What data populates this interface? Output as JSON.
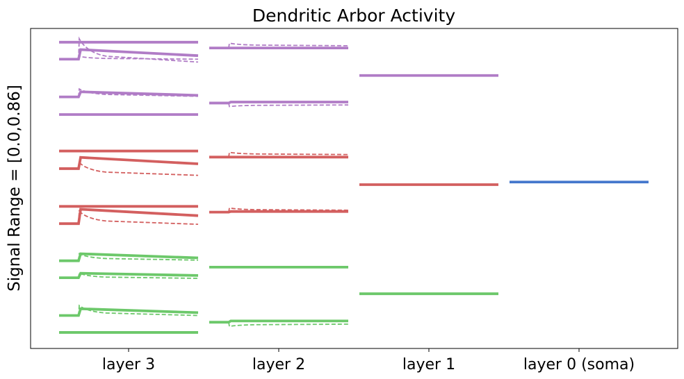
{
  "chart_data": {
    "type": "line",
    "title": "Dendritic Arbor Activity",
    "ylabel": "Signal Range = [0.0,0.86]",
    "xlabel": "",
    "categories": [
      "layer 3",
      "layer 2",
      "layer 1",
      "layer 0 (soma)"
    ],
    "yticks": "none",
    "grid": false,
    "legend": "none",
    "colors": {
      "purple": "#b07cc6",
      "red": "#d35f5f",
      "green": "#6cc86a",
      "blue": "#4477cc",
      "axis": "#000000"
    },
    "ylim": [
      0,
      100
    ],
    "traces": [
      {
        "group": "layer 3",
        "color": "purple",
        "style": "solid",
        "pre": 95.7,
        "post": 95.7,
        "tail": 95.7
      },
      {
        "group": "layer 3",
        "color": "purple",
        "style": "solid",
        "pre": 90.4,
        "post": 93.4,
        "tail": 91.5
      },
      {
        "group": "layer 3",
        "color": "purple",
        "style": "dashed",
        "pre": 90.4,
        "post": 96.8,
        "tail": 89.5,
        "overshoot": 96.8
      },
      {
        "group": "layer 3",
        "color": "purple",
        "style": "dashed",
        "pre": 90.4,
        "post": 91.3,
        "tail": 90.4
      },
      {
        "group": "layer 3",
        "color": "purple",
        "style": "solid",
        "pre": 78.6,
        "post": 80.2,
        "tail": 79.1
      },
      {
        "group": "layer 3",
        "color": "purple",
        "style": "dashed",
        "pre": 78.6,
        "post": 81.1,
        "tail": 78.8
      },
      {
        "group": "layer 3",
        "color": "purple",
        "style": "solid",
        "pre": 73.1,
        "post": 73.1,
        "tail": 73.1
      },
      {
        "group": "layer 3",
        "color": "red",
        "style": "solid",
        "pre": 61.7,
        "post": 61.7,
        "tail": 61.7
      },
      {
        "group": "layer 3",
        "color": "red",
        "style": "solid",
        "pre": 56.2,
        "post": 59.7,
        "tail": 57.7
      },
      {
        "group": "layer 3",
        "color": "red",
        "style": "dashed",
        "pre": 56.2,
        "post": 58.1,
        "tail": 54.1
      },
      {
        "group": "layer 3",
        "color": "red",
        "style": "solid",
        "pre": 44.4,
        "post": 44.4,
        "tail": 44.4
      },
      {
        "group": "layer 3",
        "color": "red",
        "style": "solid",
        "pre": 39.0,
        "post": 43.5,
        "tail": 41.5
      },
      {
        "group": "layer 3",
        "color": "red",
        "style": "dashed",
        "pre": 39.0,
        "post": 42.9,
        "tail": 38.8
      },
      {
        "group": "layer 3",
        "color": "green",
        "style": "solid",
        "pre": 27.4,
        "post": 29.6,
        "tail": 28.3
      },
      {
        "group": "layer 3",
        "color": "green",
        "style": "dashed",
        "pre": 27.4,
        "post": 29.6,
        "tail": 27.6
      },
      {
        "group": "layer 3",
        "color": "green",
        "style": "solid",
        "pre": 22.1,
        "post": 23.5,
        "tail": 22.8
      },
      {
        "group": "layer 3",
        "color": "green",
        "style": "dashed",
        "pre": 22.1,
        "post": 23.5,
        "tail": 21.9
      },
      {
        "group": "layer 3",
        "color": "green",
        "style": "solid",
        "pre": 10.3,
        "post": 12.4,
        "tail": 11.2
      },
      {
        "group": "layer 3",
        "color": "green",
        "style": "dashed",
        "pre": 10.3,
        "post": 13.4,
        "tail": 10.3
      },
      {
        "group": "layer 3",
        "color": "green",
        "style": "solid",
        "pre": 5.0,
        "post": 5.0,
        "tail": 5.0
      },
      {
        "group": "layer 2",
        "color": "purple",
        "style": "solid",
        "pre": 93.9,
        "post": 93.9,
        "tail": 93.9
      },
      {
        "group": "layer 2",
        "color": "purple",
        "style": "dashed",
        "pre": 93.9,
        "post": 95.4,
        "tail": 94.6
      },
      {
        "group": "layer 2",
        "color": "purple",
        "style": "solid",
        "pre": 76.7,
        "post": 77.0,
        "tail": 77.0
      },
      {
        "group": "layer 2",
        "color": "purple",
        "style": "dashed",
        "pre": 76.7,
        "post": 75.6,
        "tail": 76.1
      },
      {
        "group": "layer 2",
        "color": "red",
        "style": "solid",
        "pre": 59.8,
        "post": 59.8,
        "tail": 59.8
      },
      {
        "group": "layer 2",
        "color": "red",
        "style": "dashed",
        "pre": 59.8,
        "post": 61.3,
        "tail": 60.6
      },
      {
        "group": "layer 2",
        "color": "red",
        "style": "solid",
        "pre": 42.6,
        "post": 42.8,
        "tail": 42.8
      },
      {
        "group": "layer 2",
        "color": "red",
        "style": "dashed",
        "pre": 42.6,
        "post": 43.9,
        "tail": 43.2
      },
      {
        "group": "layer 2",
        "color": "green",
        "style": "solid",
        "pre": 25.4,
        "post": 25.4,
        "tail": 25.4
      },
      {
        "group": "layer 2",
        "color": "green",
        "style": "dashed",
        "pre": 25.4,
        "post": 25.6,
        "tail": 25.5
      },
      {
        "group": "layer 2",
        "color": "green",
        "style": "solid",
        "pre": 8.2,
        "post": 8.6,
        "tail": 8.6
      },
      {
        "group": "layer 2",
        "color": "green",
        "style": "dashed",
        "pre": 8.2,
        "post": 6.9,
        "tail": 7.6
      },
      {
        "group": "layer 1",
        "color": "purple",
        "style": "solid",
        "pre": 85.3,
        "post": 85.3,
        "tail": 85.3
      },
      {
        "group": "layer 1",
        "color": "red",
        "style": "solid",
        "pre": 51.2,
        "post": 51.2,
        "tail": 51.2
      },
      {
        "group": "layer 1",
        "color": "green",
        "style": "solid",
        "pre": 17.1,
        "post": 17.1,
        "tail": 17.1
      },
      {
        "group": "layer 0 (soma)",
        "color": "blue",
        "style": "solid",
        "pre": 52.0,
        "post": 52.0,
        "tail": 52.0
      }
    ]
  }
}
